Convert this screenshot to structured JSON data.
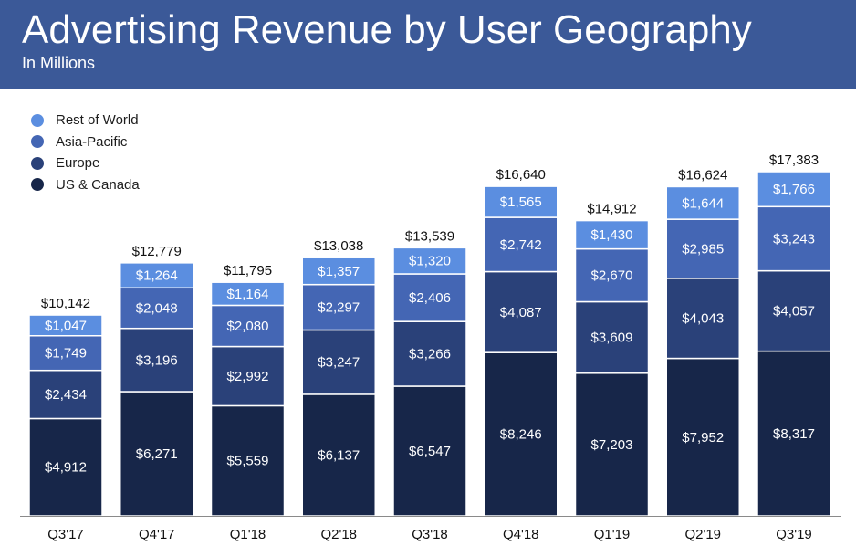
{
  "header": {
    "title": "Advertising Revenue by User Geography",
    "subtitle": "In Millions"
  },
  "legend": [
    {
      "name": "Rest of World",
      "color": "#5b8ee0"
    },
    {
      "name": "Asia-Pacific",
      "color": "#4466b4"
    },
    {
      "name": "Europe",
      "color": "#2a4179"
    },
    {
      "name": "US & Canada",
      "color": "#172649"
    }
  ],
  "chart_data": {
    "type": "bar",
    "stacked": true,
    "title": "Advertising Revenue by User Geography",
    "subtitle": "In Millions",
    "xlabel": "",
    "ylabel": "",
    "ylim": [
      0,
      17383
    ],
    "grid": false,
    "legend_position": "top-left",
    "categories": [
      "Q3'17",
      "Q4'17",
      "Q1'18",
      "Q2'18",
      "Q3'18",
      "Q4'18",
      "Q1'19",
      "Q2'19",
      "Q3'19"
    ],
    "series": [
      {
        "name": "US & Canada",
        "color": "#172649",
        "values": [
          4912,
          6271,
          5559,
          6137,
          6547,
          8246,
          7203,
          7952,
          8317
        ],
        "labels": [
          "$4,912",
          "$6,271",
          "$5,559",
          "$6,137",
          "$6,547",
          "$8,246",
          "$7,203",
          "$7,952",
          "$8,317"
        ]
      },
      {
        "name": "Europe",
        "color": "#2a4179",
        "values": [
          2434,
          3196,
          2992,
          3247,
          3266,
          4087,
          3609,
          4043,
          4057
        ],
        "labels": [
          "$2,434",
          "$3,196",
          "$2,992",
          "$3,247",
          "$3,266",
          "$4,087",
          "$3,609",
          "$4,043",
          "$4,057"
        ]
      },
      {
        "name": "Asia-Pacific",
        "color": "#4466b4",
        "values": [
          1749,
          2048,
          2080,
          2297,
          2406,
          2742,
          2670,
          2985,
          3243
        ],
        "labels": [
          "$1,749",
          "$2,048",
          "$2,080",
          "$2,297",
          "$2,406",
          "$2,742",
          "$2,670",
          "$2,985",
          "$3,243"
        ]
      },
      {
        "name": "Rest of World",
        "color": "#5b8ee0",
        "values": [
          1047,
          1264,
          1164,
          1357,
          1320,
          1565,
          1430,
          1644,
          1766
        ],
        "labels": [
          "$1,047",
          "$1,264",
          "$1,164",
          "$1,357",
          "$1,320",
          "$1,565",
          "$1,430",
          "$1,644",
          "$1,766"
        ]
      }
    ],
    "totals": [
      10142,
      12779,
      11795,
      13038,
      13539,
      16640,
      14912,
      16624,
      17383
    ],
    "total_labels": [
      "$10,142",
      "$12,779",
      "$11,795",
      "$13,038",
      "$13,539",
      "$16,640",
      "$14,912",
      "$16,624",
      "$17,383"
    ]
  }
}
